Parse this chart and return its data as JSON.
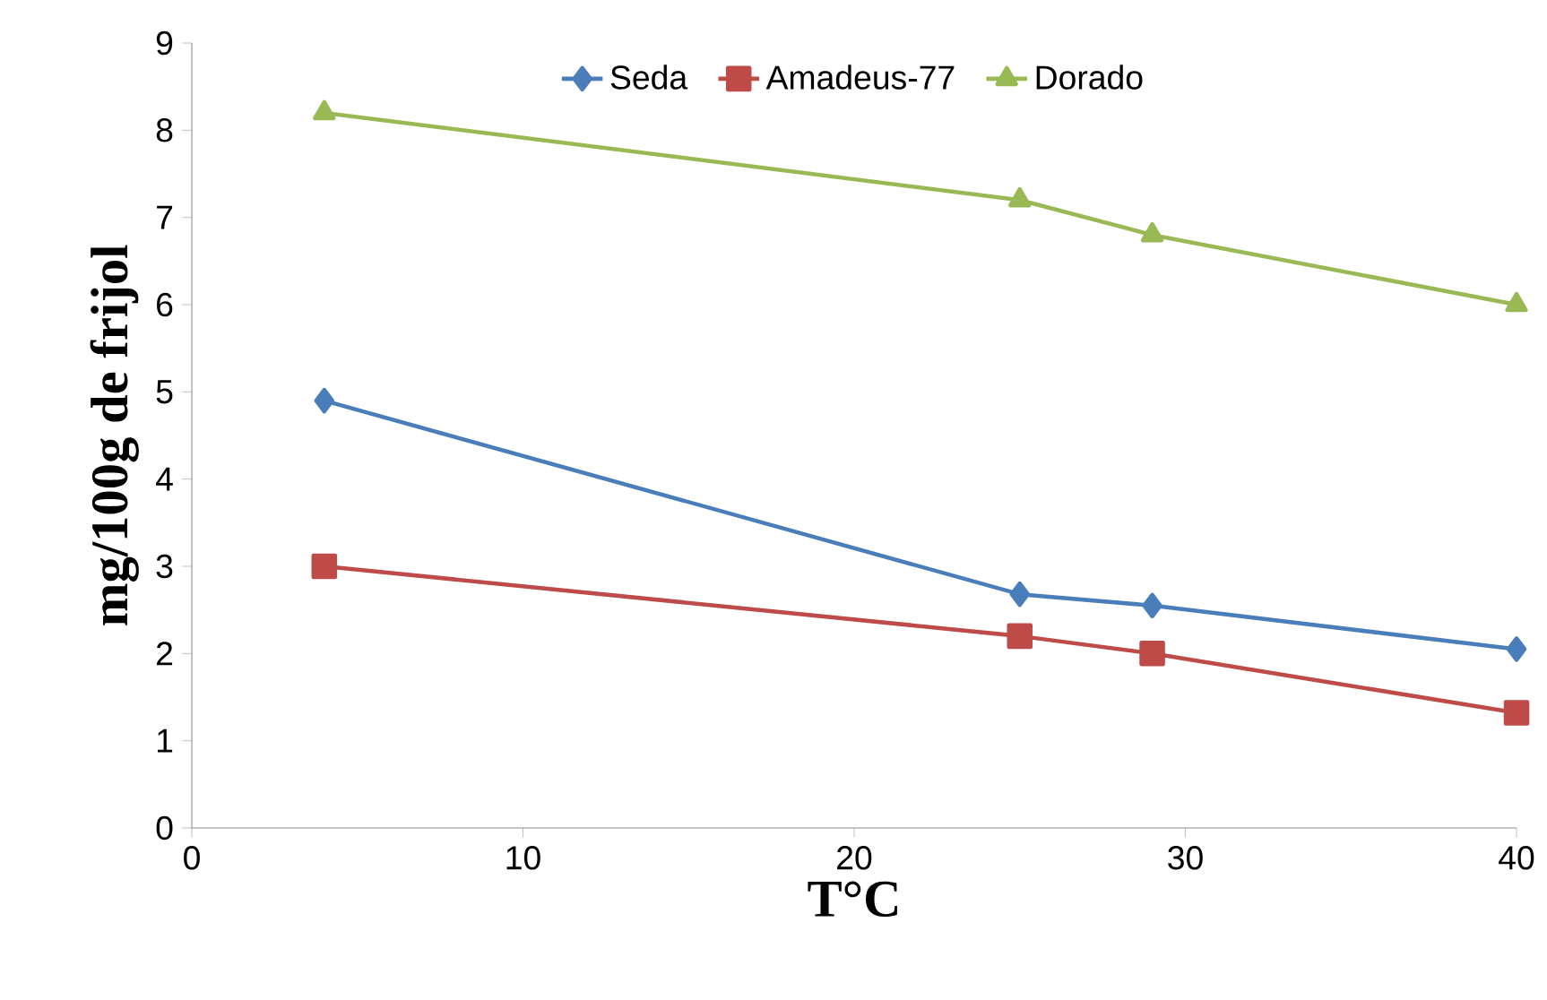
{
  "chart_data": {
    "type": "line",
    "xlabel": "T°C",
    "ylabel": "mg/100g de frijol",
    "xlim": [
      0,
      40
    ],
    "xticks": [
      0,
      10,
      20,
      30,
      40
    ],
    "ylim": [
      0,
      9
    ],
    "yticks": [
      0,
      1,
      2,
      3,
      4,
      5,
      6,
      7,
      8,
      9
    ],
    "grid": false,
    "legend": "top",
    "line_style": "solid",
    "series": [
      {
        "name": "Seda",
        "color": "#4a7ebb",
        "marker": "diamond",
        "x": [
          4,
          25,
          29,
          40
        ],
        "values": [
          4.9,
          2.68,
          2.55,
          2.05
        ]
      },
      {
        "name": "Amadeus-77",
        "color": "#be4b48",
        "marker": "square",
        "x": [
          4,
          25,
          29,
          40
        ],
        "values": [
          3.0,
          2.2,
          2.0,
          1.32
        ]
      },
      {
        "name": "Dorado",
        "color": "#98b954",
        "marker": "triangle",
        "x": [
          4,
          25,
          29,
          40
        ],
        "values": [
          8.2,
          7.2,
          6.8,
          6.0
        ]
      }
    ]
  }
}
